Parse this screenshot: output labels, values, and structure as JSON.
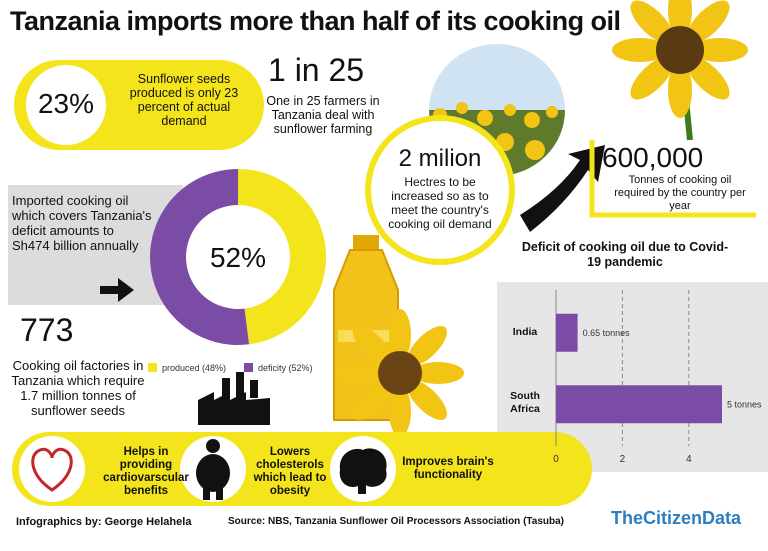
{
  "title": "Tanzania imports more than half of its cooking oil",
  "stats": {
    "seeds": {
      "value": "23%",
      "text": "Sunflower seeds produced is only 23 percent of actual demand"
    },
    "farmers": {
      "value": "1 in 25",
      "text": "One in 25 farmers in Tanzania deal with sunflower farming"
    },
    "hectares": {
      "value": "2 milion",
      "text": "Hectres to be increased so as to meet the country's cooking oil demand"
    },
    "tonnes": {
      "value": "600,000",
      "text": "Tonnes of cooking oil required by the country per year"
    },
    "imported": "Imported cooking oil which covers Tanzania's deficit amounts to Sh474 billion annually",
    "factories": {
      "value": "773",
      "text": "Cooking oil factories in Tanzania which require 1.7 million tonnes of sunflower seeds"
    }
  },
  "chart_data": [
    {
      "type": "pie",
      "donut": true,
      "center_label": "52%",
      "categories": [
        "produced (48%)",
        "deficity (52%)"
      ],
      "values": [
        48,
        52
      ],
      "colors": [
        "#f4e41c",
        "#7a4ca6"
      ]
    },
    {
      "type": "bar",
      "orientation": "horizontal",
      "title": "Deficit of cooking oil due to Covid-19 pandemic",
      "categories": [
        "India",
        "South Africa"
      ],
      "values": [
        0.65,
        5
      ],
      "value_labels": [
        "0.65 tonnes",
        "5 tonnes"
      ],
      "color": "#7a4ca6",
      "xlim": [
        0,
        5.5
      ],
      "xticks": [
        0,
        2,
        4
      ],
      "grid": true
    }
  ],
  "benefits": [
    "Helps in providing cardiovarscular benefits",
    "Lowers cholesterols which lead to obesity",
    "Improves brain's functionality"
  ],
  "footer": {
    "credit": "Infographics by: George Helahela",
    "source": "Source: NBS, Tanzania Sunflower Oil Processors Association (Tasuba)",
    "brand": "TheCitizenData"
  }
}
